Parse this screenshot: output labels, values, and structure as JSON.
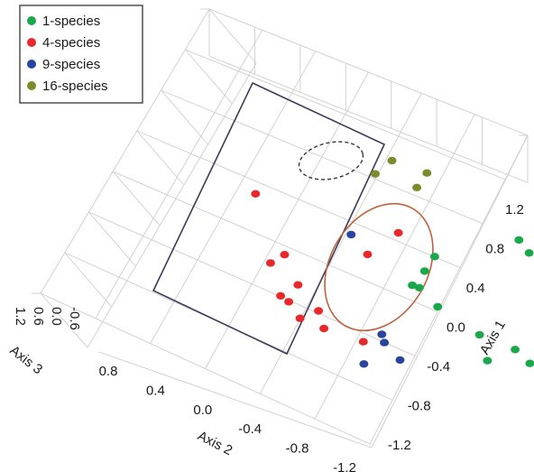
{
  "chart_data": {
    "type": "scatter",
    "projection": "3d",
    "title": "",
    "axes": {
      "axis1": {
        "label": "Axis 1",
        "ticks": [
          "1.2",
          "0.8",
          "0.4",
          "0.0",
          "-0.4",
          "-0.8",
          "-1.2"
        ]
      },
      "axis2": {
        "label": "Axis 2",
        "ticks": [
          "0.8",
          "0.4",
          "0.0",
          "-0.4",
          "-0.8",
          "-1.2"
        ]
      },
      "axis3": {
        "label": "Axis 3",
        "ticks": [
          "1.2",
          "0.6",
          "0.0",
          "-0.6"
        ]
      }
    },
    "grid": true,
    "legend": {
      "placement": "top-left",
      "entries": [
        {
          "label": "1-species",
          "color": "#1aa84b"
        },
        {
          "label": "4-species",
          "color": "#e8282b"
        },
        {
          "label": "9-species",
          "color": "#2a45a0"
        },
        {
          "label": "16-species",
          "color": "#7f8a2a"
        }
      ]
    },
    "series": [
      {
        "name": "1-species",
        "color": "#1aa84b",
        "points": [
          {
            "axis1": 1.05,
            "axis2": -1.05,
            "axis3": 0.0
          },
          {
            "axis1": 0.95,
            "axis2": -1.08,
            "axis3": 0.0
          },
          {
            "axis1": 0.75,
            "axis2": -0.62,
            "axis3": 0.0
          },
          {
            "axis1": 0.6,
            "axis2": -0.55,
            "axis3": 0.0
          },
          {
            "axis1": 0.45,
            "axis2": -0.47,
            "axis3": 0.0
          },
          {
            "axis1": 0.44,
            "axis2": -0.5,
            "axis3": 0.0
          },
          {
            "axis1": 0.3,
            "axis2": -0.56,
            "axis3": 0.0
          },
          {
            "axis1": 0.12,
            "axis2": -0.72,
            "axis3": 0.0
          },
          {
            "axis1": 0.05,
            "axis2": -0.87,
            "axis3": 0.0
          },
          {
            "axis1": -0.05,
            "axis2": -0.92,
            "axis3": 0.0
          },
          {
            "axis1": -0.1,
            "axis2": -0.72,
            "axis3": 0.0
          },
          {
            "axis1": -0.18,
            "axis2": -0.95,
            "axis3": 0.0
          }
        ]
      },
      {
        "name": "4-species",
        "color": "#e8282b",
        "points": [
          {
            "axis1": 1.0,
            "axis2": 0.15,
            "axis3": 0.0
          },
          {
            "axis1": 0.9,
            "axis2": -0.48,
            "axis3": 0.0
          },
          {
            "axis1": 0.65,
            "axis2": -0.3,
            "axis3": 0.0
          },
          {
            "axis1": 0.5,
            "axis2": 0.1,
            "axis3": 0.0
          },
          {
            "axis1": 0.4,
            "axis2": 0.18,
            "axis3": 0.0
          },
          {
            "axis1": 0.25,
            "axis2": 0.08,
            "axis3": 0.0
          },
          {
            "axis1": 0.12,
            "axis2": 0.18,
            "axis3": 0.0
          },
          {
            "axis1": 0.08,
            "axis2": 0.15,
            "axis3": 0.0
          },
          {
            "axis1": 0.05,
            "axis2": 0.02,
            "axis3": 0.0
          },
          {
            "axis1": -0.05,
            "axis2": 0.12,
            "axis3": 0.0
          },
          {
            "axis1": -0.1,
            "axis2": 0.02,
            "axis3": 0.0
          },
          {
            "axis1": -0.15,
            "axis2": -0.15,
            "axis3": 0.0
          }
        ]
      },
      {
        "name": "9-species",
        "color": "#2a45a0",
        "points": [
          {
            "axis1": 0.8,
            "axis2": -0.25,
            "axis3": 0.0
          },
          {
            "axis1": -0.05,
            "axis2": -0.25,
            "axis3": 0.0
          },
          {
            "axis1": -0.12,
            "axis2": -0.25,
            "axis3": 0.0
          },
          {
            "axis1": -0.25,
            "axis2": -0.3,
            "axis3": 0.0
          },
          {
            "axis1": -0.35,
            "axis2": -0.12,
            "axis3": 0.0
          }
        ]
      },
      {
        "name": "16-species",
        "color": "#7f8a2a",
        "points": [
          {
            "axis1": 1.2,
            "axis2": -0.5,
            "axis3": 0.6
          },
          {
            "axis1": 1.15,
            "axis2": -0.65,
            "axis3": 0.6
          },
          {
            "axis1": 1.05,
            "axis2": -0.4,
            "axis3": 0.6
          },
          {
            "axis1": 1.0,
            "axis2": -0.58,
            "axis3": 0.6
          }
        ]
      }
    ],
    "annotations": [
      {
        "type": "ellipse",
        "style": "solid",
        "color": "#c0623c",
        "encloses": "1-species"
      },
      {
        "type": "ellipse",
        "style": "dashed",
        "color": "#333333",
        "encloses": "16-species"
      },
      {
        "type": "rectangle",
        "style": "solid",
        "color": "#3c3c5a",
        "encloses": "4-species and 9-species"
      }
    ]
  }
}
